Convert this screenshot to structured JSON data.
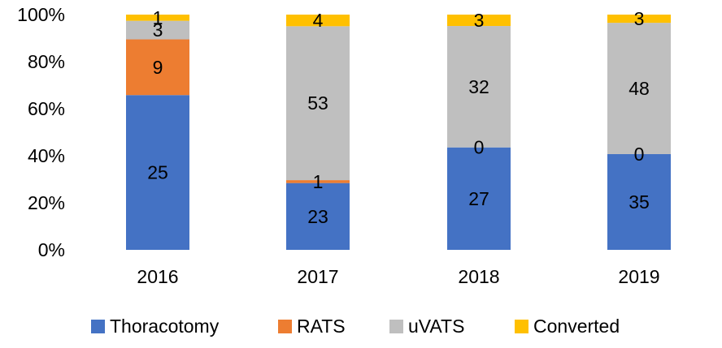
{
  "chart_data": {
    "type": "bar",
    "stacked": true,
    "normalized": true,
    "categories": [
      "2016",
      "2017",
      "2018",
      "2019"
    ],
    "series": [
      {
        "name": "Thoracotomy",
        "values": [
          25,
          23,
          27,
          35
        ],
        "color": "#4472C4"
      },
      {
        "name": "RATS",
        "values": [
          9,
          1,
          0,
          0
        ],
        "color": "#ED7D31"
      },
      {
        "name": "uVATS",
        "values": [
          3,
          53,
          32,
          48
        ],
        "color": "#BFBFBF"
      },
      {
        "name": "Converted",
        "values": [
          1,
          4,
          3,
          3
        ],
        "color": "#FFC000"
      }
    ],
    "y_ticks": [
      "0%",
      "20%",
      "40%",
      "60%",
      "80%",
      "100%"
    ],
    "ylim": [
      0,
      100
    ],
    "title": "",
    "xlabel": "",
    "ylabel": "",
    "grid": false,
    "legend_position": "bottom"
  }
}
